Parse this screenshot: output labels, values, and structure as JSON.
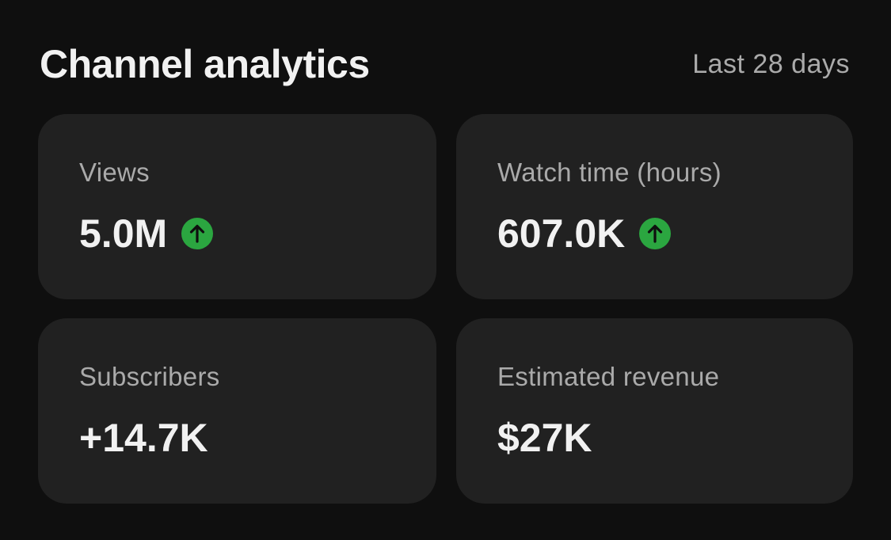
{
  "header": {
    "title": "Channel analytics",
    "period": "Last 28 days"
  },
  "cards": [
    {
      "label": "Views",
      "value": "5.0M"
    },
    {
      "label": "Watch time (hours)",
      "value": "607.0K"
    },
    {
      "label": "Subscribers",
      "value": "+14.7K"
    },
    {
      "label": "Estimated revenue",
      "value": "$27K"
    }
  ]
}
